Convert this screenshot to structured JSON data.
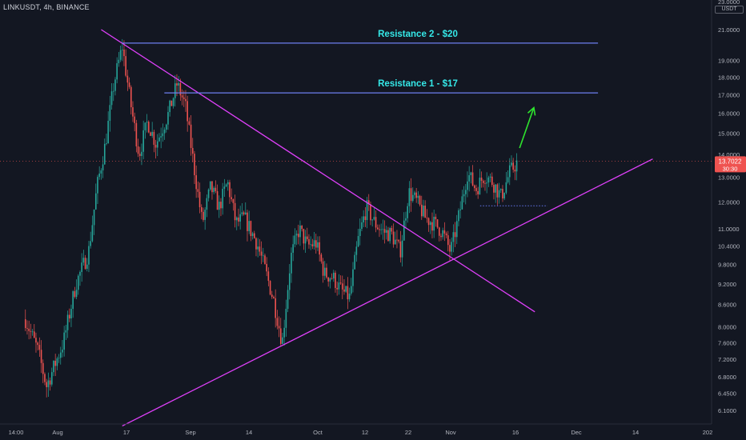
{
  "header": {
    "title": "LINKUSDT, 4h, BINANCE",
    "unit": "USDT"
  },
  "colors": {
    "background": "#131722",
    "up": "#26a69a",
    "down": "#ef5350",
    "trendline": "#e040fb",
    "resistance": "#6d7ff0",
    "annotation": "#35e8e8",
    "arrow": "#2ee32e"
  },
  "chart_data": {
    "type": "candlestick",
    "log_scale": true,
    "grid": false,
    "ylim": [
      5.8,
      23.5
    ],
    "y_ticks": [
      "6.1000",
      "6.4500",
      "6.8000",
      "7.2000",
      "7.6000",
      "8.0000",
      "8.6000",
      "9.2000",
      "9.8000",
      "10.4000",
      "11.0000",
      "12.0000",
      "13.0000",
      "14.0000",
      "15.0000",
      "16.0000",
      "17.0000",
      "18.0000",
      "19.0000",
      "21.0000",
      "23.0000"
    ],
    "x_ticks": [
      "14:00",
      "Aug",
      "17",
      "Sep",
      "14",
      "Oct",
      "12",
      "22",
      "Nov",
      "16",
      "Dec",
      "14",
      "202"
    ],
    "last_price": {
      "value": 13.7022,
      "label": "13.7022",
      "countdown": "30:30"
    },
    "price_path": [
      [
        "2020-07-24",
        8.2
      ],
      [
        "2020-07-27",
        7.4
      ],
      [
        "2020-07-29",
        6.6
      ],
      [
        "2020-08-02",
        7.6
      ],
      [
        "2020-08-05",
        9.2
      ],
      [
        "2020-08-08",
        10.2
      ],
      [
        "2020-08-10",
        12.6
      ],
      [
        "2020-08-12",
        14.5
      ],
      [
        "2020-08-14",
        17.6
      ],
      [
        "2020-08-16",
        19.9
      ],
      [
        "2020-08-18",
        16.5
      ],
      [
        "2020-08-20",
        14.0
      ],
      [
        "2020-08-22",
        15.6
      ],
      [
        "2020-08-24",
        14.5
      ],
      [
        "2020-08-27",
        16.0
      ],
      [
        "2020-08-29",
        17.6
      ],
      [
        "2020-08-31",
        16.4
      ],
      [
        "2020-09-02",
        13.5
      ],
      [
        "2020-09-04",
        11.2
      ],
      [
        "2020-09-06",
        12.6
      ],
      [
        "2020-09-08",
        11.8
      ],
      [
        "2020-09-10",
        12.8
      ],
      [
        "2020-09-12",
        11.2
      ],
      [
        "2020-09-14",
        11.4
      ],
      [
        "2020-09-17",
        10.5
      ],
      [
        "2020-09-19",
        9.6
      ],
      [
        "2020-09-21",
        8.7
      ],
      [
        "2020-09-23",
        7.6
      ],
      [
        "2020-09-25",
        10.0
      ],
      [
        "2020-09-27",
        11.0
      ],
      [
        "2020-09-29",
        10.4
      ],
      [
        "2020-10-01",
        10.5
      ],
      [
        "2020-10-03",
        9.5
      ],
      [
        "2020-10-05",
        9.4
      ],
      [
        "2020-10-07",
        9.0
      ],
      [
        "2020-10-09",
        8.8
      ],
      [
        "2020-10-11",
        10.6
      ],
      [
        "2020-10-13",
        11.8
      ],
      [
        "2020-10-15",
        11.2
      ],
      [
        "2020-10-17",
        10.9
      ],
      [
        "2020-10-19",
        10.8
      ],
      [
        "2020-10-21",
        10.2
      ],
      [
        "2020-10-23",
        12.4
      ],
      [
        "2020-10-25",
        12.0
      ],
      [
        "2020-10-27",
        11.4
      ],
      [
        "2020-10-29",
        11.2
      ],
      [
        "2020-10-31",
        10.9
      ],
      [
        "2020-11-02",
        10.2
      ],
      [
        "2020-11-04",
        11.5
      ],
      [
        "2020-11-06",
        13.2
      ],
      [
        "2020-11-08",
        12.5
      ],
      [
        "2020-11-10",
        13.1
      ],
      [
        "2020-11-12",
        12.8
      ],
      [
        "2020-11-14",
        12.2
      ],
      [
        "2020-11-16",
        13.2
      ],
      [
        "2020-11-18",
        13.7
      ]
    ],
    "trendlines": [
      {
        "kind": "descending",
        "from": [
          "2020-08-11",
          21.0
        ],
        "to": [
          "2020-11-22",
          8.4
        ]
      },
      {
        "kind": "ascending",
        "from": [
          "2020-08-16",
          5.8
        ],
        "to": [
          "2020-12-20",
          13.8
        ]
      }
    ],
    "horizontal_levels": [
      {
        "label": "Resistance 2 - $20",
        "value": 20.1,
        "from": "2020-08-16",
        "to": "2020-12-07"
      },
      {
        "label": "Resistance 1 - $17",
        "value": 17.1,
        "from": "2020-08-26",
        "to": "2020-12-07"
      }
    ],
    "support_dotted": {
      "value": 11.85,
      "from": "2020-11-09",
      "to": "2020-11-25"
    },
    "projection_arrow": {
      "from": [
        "2020-11-18",
        14.3
      ],
      "to": [
        "2020-11-21",
        16.3
      ]
    }
  }
}
